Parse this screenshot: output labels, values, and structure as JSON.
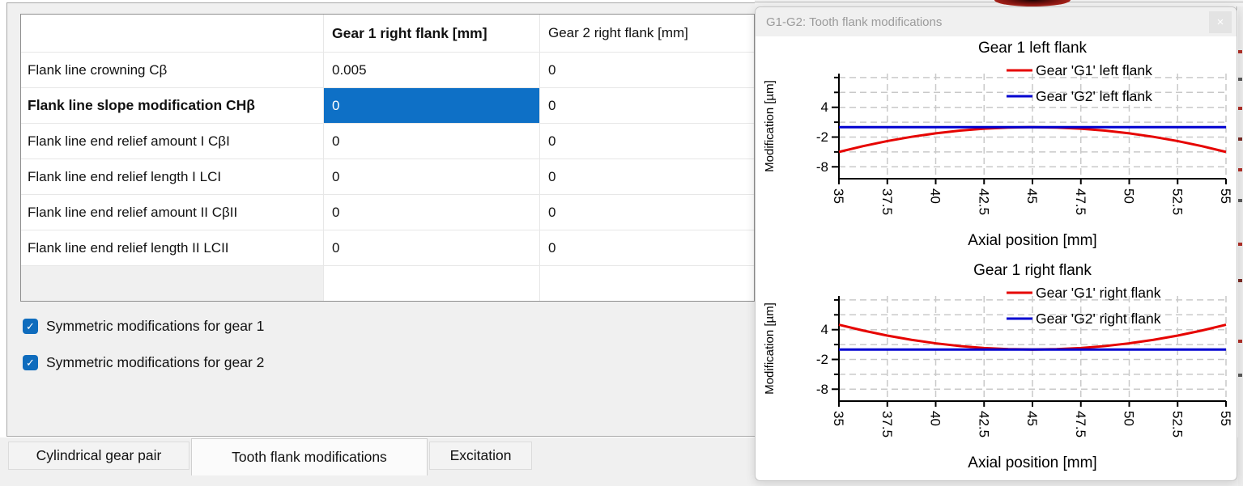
{
  "icons": {
    "check": "✓",
    "close": "×"
  },
  "colors": {
    "accent_blue": "#0e70c6",
    "series_red": "#e60300",
    "series_blue": "#0000d0",
    "grid": "#c9c9c9"
  },
  "dialog": {
    "title": "G1-G2: Tooth flank modifications"
  },
  "table": {
    "col_headers": [
      "Gear 1 right flank [mm]",
      "Gear 2 right flank [mm]"
    ],
    "rows": [
      {
        "label": "Flank line crowning Cβ",
        "gear1": "0.005",
        "gear2": "0",
        "bold": false,
        "selected": false
      },
      {
        "label": "Flank line slope modification CHβ",
        "gear1": "0",
        "gear2": "0",
        "bold": true,
        "selected": true
      },
      {
        "label": "Flank line end relief amount I CβI",
        "gear1": "0",
        "gear2": "0",
        "bold": false,
        "selected": false
      },
      {
        "label": "Flank line end relief length I LCI",
        "gear1": "0",
        "gear2": "0",
        "bold": false,
        "selected": false
      },
      {
        "label": "Flank line end relief amount II CβII",
        "gear1": "0",
        "gear2": "0",
        "bold": false,
        "selected": false
      },
      {
        "label": "Flank line end relief length II LCII",
        "gear1": "0",
        "gear2": "0",
        "bold": false,
        "selected": false
      }
    ]
  },
  "checkboxes": [
    {
      "label": "Symmetric modifications for gear 1",
      "checked": true
    },
    {
      "label": "Symmetric modifications for gear 2",
      "checked": true
    }
  ],
  "tabs": [
    {
      "label": "Cylindrical gear pair",
      "active": false
    },
    {
      "label": "Tooth flank modifications",
      "active": true
    },
    {
      "label": "Excitation",
      "active": false
    }
  ],
  "chart_data": [
    {
      "type": "line",
      "title": "Gear 1 left flank",
      "xlabel": "Axial position [mm]",
      "ylabel": "Modification [µm]",
      "xlim": [
        35,
        55
      ],
      "ylim": [
        -10.4,
        10.8
      ],
      "xticks": [
        35,
        37.5,
        40,
        42.5,
        45,
        47.5,
        50,
        52.5,
        55
      ],
      "yticks": [
        10,
        7,
        4,
        1,
        -2,
        -5,
        -8
      ],
      "ytick_labels_shown": [
        4,
        -2,
        -8
      ],
      "grid": true,
      "legend_position": "top-right",
      "x": [
        35,
        36.25,
        37.5,
        38.75,
        40,
        41.25,
        42.5,
        43.75,
        45,
        46.25,
        47.5,
        48.75,
        50,
        51.25,
        52.5,
        53.75,
        55
      ],
      "series": [
        {
          "name": "Gear 'G1' left flank",
          "color": "#e60300",
          "values": [
            -5,
            -3.83,
            -2.81,
            -1.95,
            -1.25,
            -0.7,
            -0.31,
            -0.08,
            0,
            -0.08,
            -0.31,
            -0.7,
            -1.25,
            -1.95,
            -2.81,
            -3.83,
            -5
          ]
        },
        {
          "name": "Gear 'G2' left flank",
          "color": "#0000d0",
          "values": [
            0,
            0,
            0,
            0,
            0,
            0,
            0,
            0,
            0,
            0,
            0,
            0,
            0,
            0,
            0,
            0,
            0
          ]
        }
      ]
    },
    {
      "type": "line",
      "title": "Gear 1 right flank",
      "xlabel": "Axial position [mm]",
      "ylabel": "Modification [µm]",
      "xlim": [
        35,
        55
      ],
      "ylim": [
        -10.4,
        10.8
      ],
      "xticks": [
        35,
        37.5,
        40,
        42.5,
        45,
        47.5,
        50,
        52.5,
        55
      ],
      "yticks": [
        10,
        7,
        4,
        1,
        -2,
        -5,
        -8
      ],
      "ytick_labels_shown": [
        4,
        -2,
        -8
      ],
      "grid": true,
      "legend_position": "top-right",
      "x": [
        35,
        36.25,
        37.5,
        38.75,
        40,
        41.25,
        42.5,
        43.75,
        45,
        46.25,
        47.5,
        48.75,
        50,
        51.25,
        52.5,
        53.75,
        55
      ],
      "series": [
        {
          "name": "Gear 'G1' right flank",
          "color": "#e60300",
          "values": [
            5,
            3.83,
            2.81,
            1.95,
            1.25,
            0.7,
            0.31,
            0.08,
            0,
            0.08,
            0.31,
            0.7,
            1.25,
            1.95,
            2.81,
            3.83,
            5
          ]
        },
        {
          "name": "Gear 'G2' right flank",
          "color": "#0000d0",
          "values": [
            0,
            0,
            0,
            0,
            0,
            0,
            0,
            0,
            0,
            0,
            0,
            0,
            0,
            0,
            0,
            0,
            0
          ]
        }
      ]
    }
  ]
}
